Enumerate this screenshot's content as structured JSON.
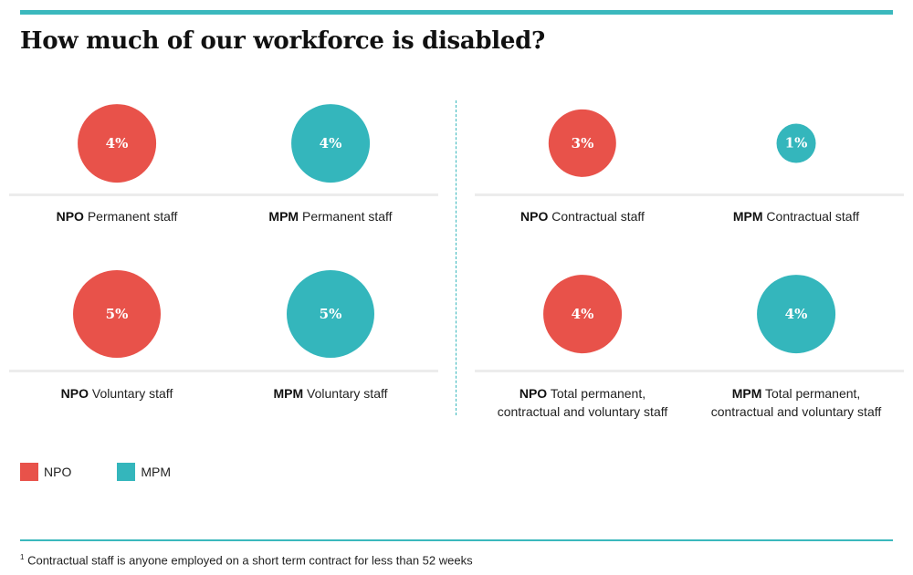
{
  "title": "How much of our workforce is disabled?",
  "colors": {
    "npo": "#e8524a",
    "mpm": "#34b6bc",
    "accent": "#3bb8bd"
  },
  "legend": [
    {
      "label": "NPO",
      "color": "#e8524a"
    },
    {
      "label": "MPM",
      "color": "#34b6bc"
    }
  ],
  "footnote": {
    "marker": "1",
    "text": "Contractual staff is anyone employed on a short term contract for less than 52 weeks"
  },
  "chart_data": {
    "type": "bubble",
    "title": "How much of our workforce is disabled?",
    "items": [
      {
        "org": "NPO",
        "category_lines": [
          "Permanent staff"
        ],
        "value": 4,
        "value_label": "4%",
        "color": "#e8524a"
      },
      {
        "org": "MPM",
        "category_lines": [
          "Permanent staff"
        ],
        "value": 4,
        "value_label": "4%",
        "color": "#34b6bc"
      },
      {
        "org": "NPO",
        "category_lines": [
          "Contractual staff"
        ],
        "value": 3,
        "value_label": "3%",
        "color": "#e8524a"
      },
      {
        "org": "MPM",
        "category_lines": [
          "Contractual staff"
        ],
        "value": 1,
        "value_label": "1%",
        "color": "#34b6bc"
      },
      {
        "org": "NPO",
        "category_lines": [
          "Voluntary staff"
        ],
        "value": 5,
        "value_label": "5%",
        "color": "#e8524a"
      },
      {
        "org": "MPM",
        "category_lines": [
          "Voluntary staff"
        ],
        "value": 5,
        "value_label": "5%",
        "color": "#34b6bc"
      },
      {
        "org": "NPO",
        "category_lines": [
          "Total permanent,",
          "contractual and voluntary staff"
        ],
        "value": 4,
        "value_label": "4%",
        "color": "#e8524a"
      },
      {
        "org": "MPM",
        "category_lines": [
          "Total permanent,",
          "contractual and voluntary staff"
        ],
        "value": 4,
        "value_label": "4%",
        "color": "#34b6bc"
      }
    ],
    "legend_placement": "bottom-left"
  }
}
